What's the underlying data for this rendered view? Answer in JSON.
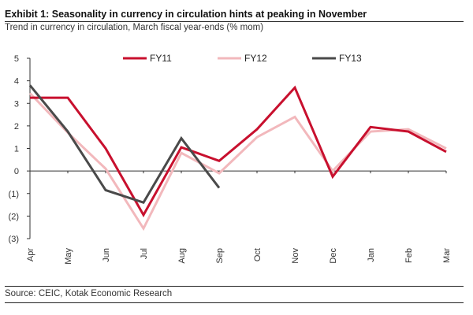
{
  "chart_data": {
    "type": "line",
    "title": "Exhibit 1: Seasonality in currency in circulation hints at peaking in November",
    "subtitle": "Trend in currency in circulation, March fiscal year-ends (% mom)",
    "source": "Source: CEIC, Kotak Economic Research",
    "categories": [
      "Apr",
      "May",
      "Jun",
      "Jul",
      "Aug",
      "Sep",
      "Oct",
      "Nov",
      "Dec",
      "Jan",
      "Feb",
      "Mar"
    ],
    "ylim": [
      -3,
      5
    ],
    "yticks": [
      5,
      4,
      3,
      2,
      1,
      0,
      -1,
      -2,
      -3
    ],
    "ytick_labels": [
      "5",
      "4",
      "3",
      "2",
      "1",
      "0",
      "(1)",
      "(2)",
      "(3)"
    ],
    "grid": false,
    "legend_position": "top",
    "series": [
      {
        "name": "FY11",
        "color": "#c8102e",
        "values": [
          3.25,
          3.25,
          1.0,
          -1.95,
          1.05,
          0.45,
          1.85,
          3.7,
          -0.25,
          1.95,
          1.75,
          0.85
        ]
      },
      {
        "name": "FY12",
        "color": "#f2b8bc",
        "values": [
          3.45,
          1.7,
          0.1,
          -2.55,
          0.8,
          -0.1,
          1.5,
          2.4,
          0.0,
          1.75,
          1.85,
          1.0
        ]
      },
      {
        "name": "FY13",
        "color": "#4a4a4a",
        "values": [
          3.8,
          1.75,
          -0.85,
          -1.4,
          1.45,
          -0.75,
          null,
          null,
          null,
          null,
          null,
          null
        ]
      }
    ]
  }
}
